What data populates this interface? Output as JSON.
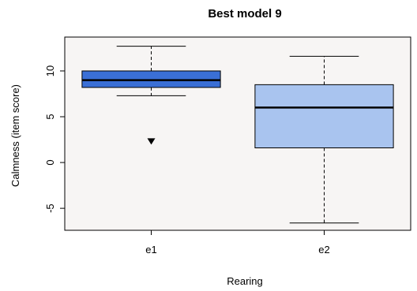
{
  "chart_data": {
    "type": "boxplot",
    "title": "Best model 9",
    "xlabel": "Rearing",
    "ylabel": "Calmness (item score)",
    "categories": [
      "e1",
      "e2"
    ],
    "ylim": [
      -7.4,
      13.7
    ],
    "yticks": [
      -5,
      0,
      5,
      10
    ],
    "ytick_labels": [
      "-5",
      "0",
      "5",
      "10"
    ],
    "grid": false,
    "boxes": [
      {
        "category": "e1",
        "whisker_low": 7.3,
        "q1": 8.2,
        "median": 9.0,
        "q3": 10.0,
        "whisker_high": 12.7,
        "outliers": [
          2.3
        ],
        "fill": "#3a6fd6"
      },
      {
        "category": "e2",
        "whisker_low": -6.6,
        "q1": 1.6,
        "median": 6.0,
        "q3": 8.5,
        "whisker_high": 11.6,
        "outliers": [],
        "fill": "#a9c4ef"
      }
    ]
  },
  "colors": {
    "panel_background": "#f7f5f4",
    "axis": "#000000"
  }
}
